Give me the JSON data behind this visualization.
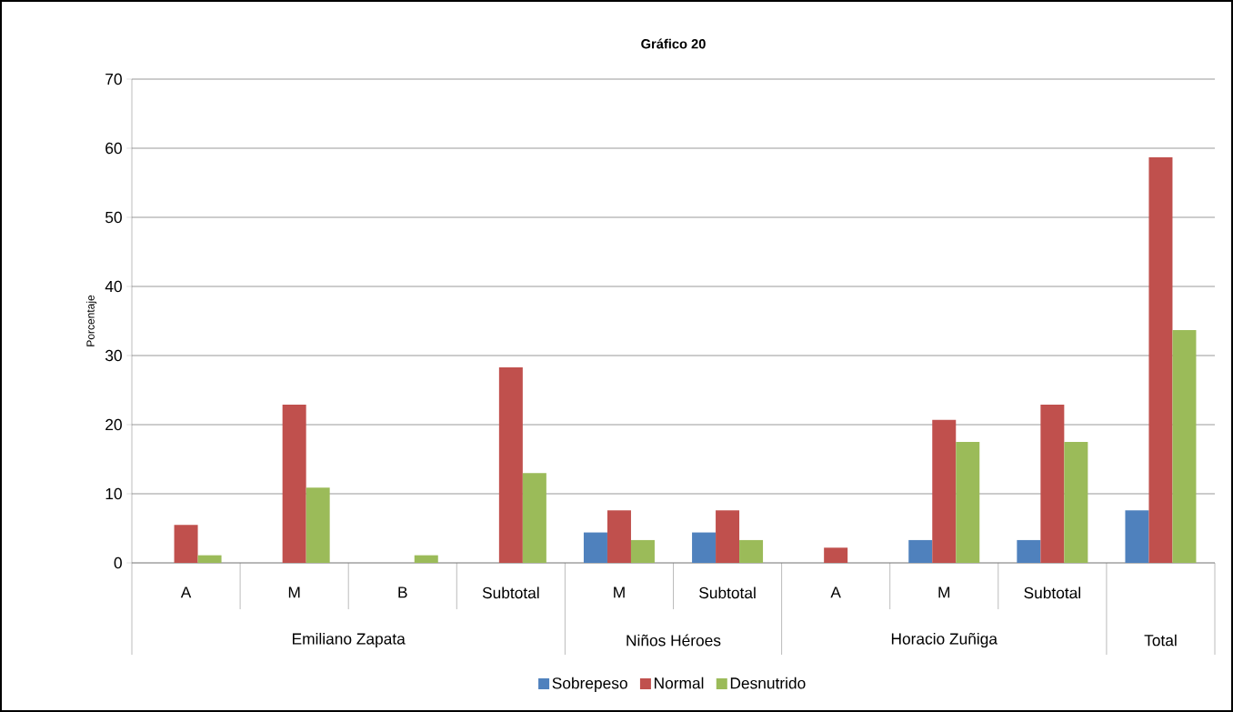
{
  "chart_data": {
    "type": "bar",
    "title": "Gráfico 20",
    "ylabel": "Porcentaje",
    "categories": [
      "A",
      "M",
      "B",
      "Subtotal",
      "M",
      "Subtotal",
      "A",
      "M",
      "Subtotal",
      null
    ],
    "annotations": [
      "Emiliano Zapata",
      "Niños Héroes",
      "Horacio Zuñiga",
      "Total"
    ],
    "series": [
      {
        "name": "Sobrepeso",
        "color": "#4f81bd",
        "values": [
          0,
          0,
          0,
          0,
          4.4,
          4.4,
          0,
          3.3,
          3.3,
          7.6
        ]
      },
      {
        "name": "Normal",
        "color": "#c0504d",
        "values": [
          5.5,
          22.9,
          0,
          28.3,
          7.6,
          7.6,
          2.2,
          20.7,
          22.9,
          58.7
        ]
      },
      {
        "name": "Desnutrido",
        "color": "#9bbb59",
        "values": [
          1.1,
          10.9,
          1.1,
          13.0,
          3.3,
          3.3,
          0,
          17.5,
          17.5,
          33.7
        ]
      }
    ],
    "ylim": [
      0,
      70
    ],
    "yticks": [
      0,
      10,
      20,
      30,
      40,
      50,
      60,
      70
    ],
    "grid": "y",
    "legend": "bottom"
  }
}
